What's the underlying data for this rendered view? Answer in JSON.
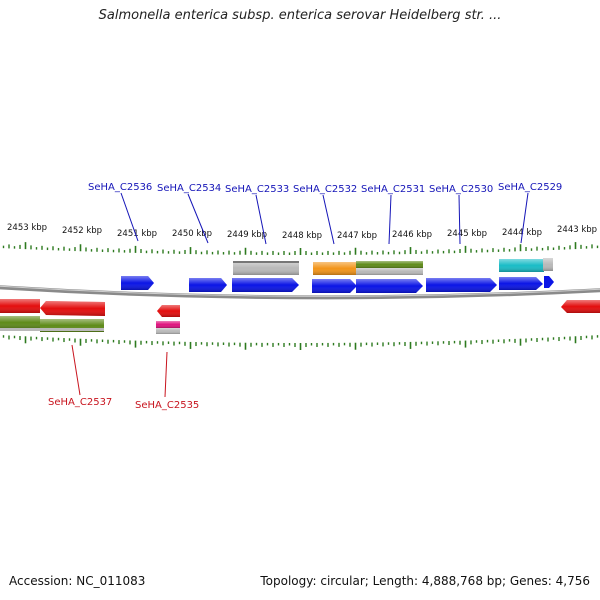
{
  "header": {
    "title": "Salmonella enterica subsp. enterica serovar Heidelberg str. ..."
  },
  "footer": {
    "accession": "Accession: NC_011083",
    "summary": "Topology: circular; Length: 4,888,768 bp; Genes: 4,756"
  },
  "ruler": {
    "ticks": [
      "2453 kbp",
      "2452 kbp",
      "2451 kbp",
      "2450 kbp",
      "2449 kbp",
      "2448 kbp",
      "2447 kbp",
      "2446 kbp",
      "2445 kbp",
      "2444 kbp",
      "2443 kbp"
    ]
  },
  "gene_labels_top": [
    "SeHA_C2536",
    "SeHA_C2534",
    "SeHA_C2533",
    "SeHA_C2532",
    "SeHA_C2531",
    "SeHA_C2530",
    "SeHA_C2529"
  ],
  "gene_labels_bottom": [
    "SeHA_C2537",
    "SeHA_C2535"
  ],
  "colors": {
    "gene_blue": "#0a14e6",
    "gene_red": "#e30d0d",
    "gene_olive": "#5e8a18",
    "gene_grey": "#b9b9b9",
    "gene_orange": "#f29418",
    "gene_cyan": "#19bcc6",
    "gene_pink": "#e0127e",
    "tick_green": "#2d7a1f",
    "label_top": "#1616b8",
    "label_bottom": "#c8141e",
    "backbone": "#8a8a8a"
  }
}
